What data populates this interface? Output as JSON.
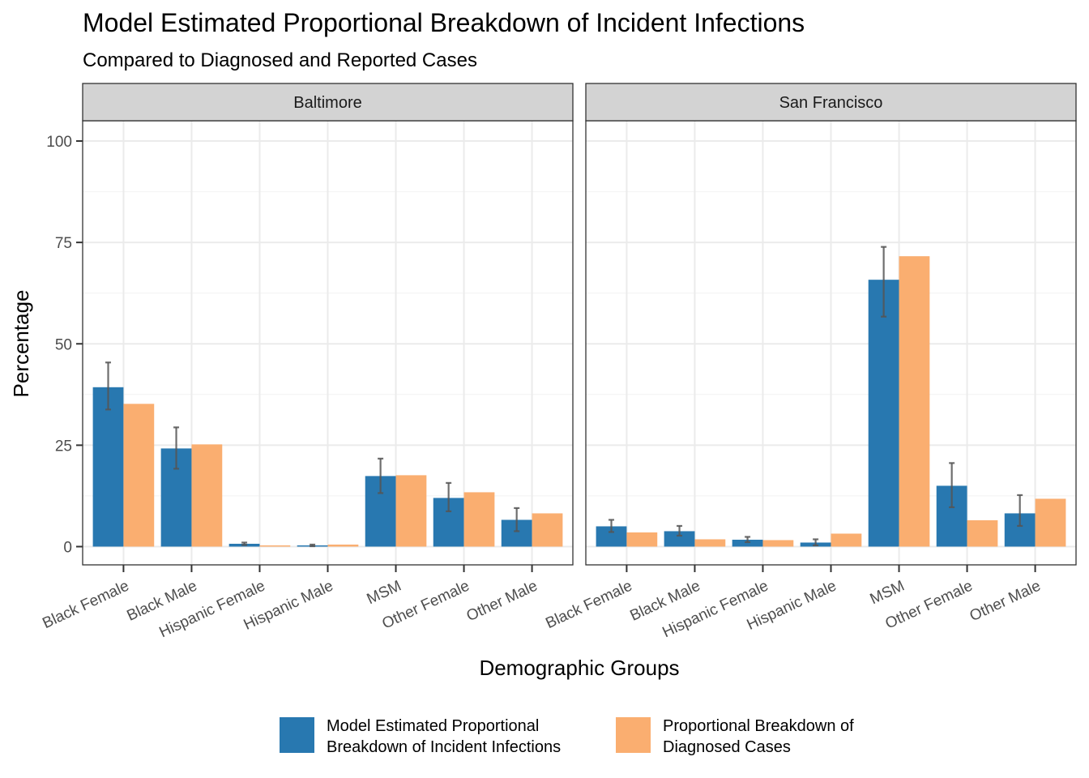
{
  "chart_data": {
    "type": "bar",
    "title": "Model Estimated Proportional Breakdown of Incident Infections",
    "subtitle": "Compared to Diagnosed and Reported Cases",
    "xlabel": "Demographic Groups",
    "ylabel": "Percentage",
    "ylim": [
      -4.5,
      105
    ],
    "yticks": [
      0,
      25,
      50,
      75,
      100
    ],
    "grid": true,
    "legend_position": "bottom",
    "categories": [
      "Black Female",
      "Black Male",
      "Hispanic Female",
      "Hispanic Male",
      "MSM",
      "Other Female",
      "Other Male"
    ],
    "series_styles": [
      {
        "label_lines": [
          "Model Estimated Proportional",
          "Breakdown of Incident Infections"
        ],
        "color": "#2878b0"
      },
      {
        "label_lines": [
          "Proportional Breakdown of",
          "Diagnosed Cases"
        ],
        "color": "#faae70"
      }
    ],
    "panels": [
      {
        "name": "Baltimore",
        "model": [
          39.3,
          24.2,
          0.7,
          0.3,
          17.4,
          12.0,
          6.6
        ],
        "model_error": [
          [
            33.8,
            45.4
          ],
          [
            19.2,
            29.4
          ],
          [
            0.4,
            1.0
          ],
          [
            0.1,
            0.5
          ],
          [
            13.2,
            21.7
          ],
          [
            8.7,
            15.7
          ],
          [
            3.8,
            9.5
          ]
        ],
        "diagnosed": [
          35.2,
          25.2,
          0.3,
          0.5,
          17.6,
          13.4,
          8.2
        ]
      },
      {
        "name": "San Francisco",
        "model": [
          5.0,
          3.8,
          1.7,
          1.0,
          65.8,
          15.0,
          8.2
        ],
        "model_error": [
          [
            3.6,
            6.6
          ],
          [
            2.7,
            5.1
          ],
          [
            1.1,
            2.4
          ],
          [
            0.3,
            1.8
          ],
          [
            56.7,
            73.9
          ],
          [
            9.7,
            20.6
          ],
          [
            5.1,
            12.7
          ]
        ],
        "diagnosed": [
          3.5,
          1.8,
          1.6,
          3.2,
          71.6,
          6.5,
          11.8
        ]
      }
    ]
  }
}
